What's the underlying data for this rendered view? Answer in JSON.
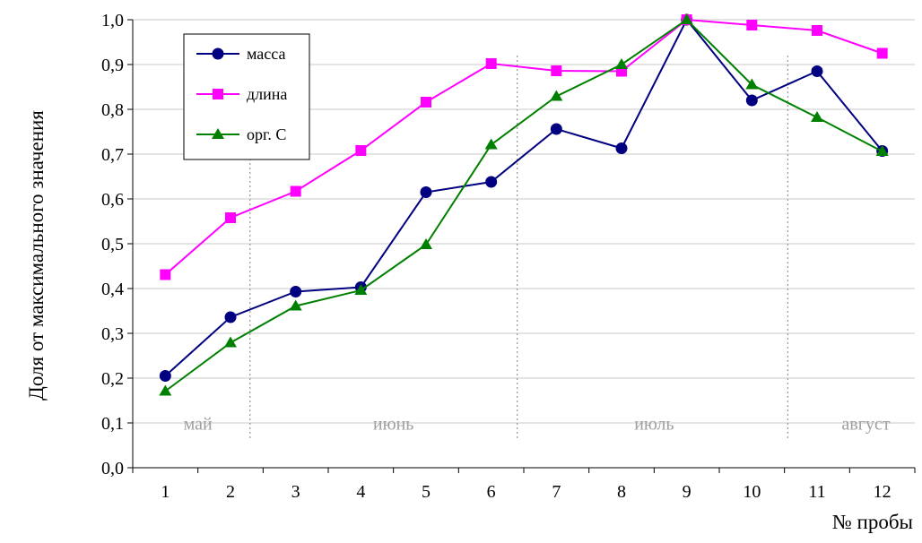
{
  "chart_data": {
    "type": "line",
    "title": "",
    "xlabel": "№ пробы",
    "ylabel": "Доля от максимального значения",
    "x": [
      1,
      2,
      3,
      4,
      5,
      6,
      7,
      8,
      9,
      10,
      11,
      12
    ],
    "x_tick_labels": [
      "1",
      "2",
      "3",
      "4",
      "5",
      "6",
      "7",
      "8",
      "9",
      "10",
      "11",
      "12"
    ],
    "ylim": [
      0,
      1
    ],
    "y_tick_labels": [
      "0,0",
      "0,1",
      "0,2",
      "0,3",
      "0,4",
      "0,5",
      "0,6",
      "0,7",
      "0,8",
      "0,9",
      "1,0"
    ],
    "grid": true,
    "legend_position": "top-left",
    "series": [
      {
        "name": "масса",
        "color": "#000080",
        "marker": "circle",
        "values": [
          0.205,
          0.336,
          0.393,
          0.403,
          0.615,
          0.638,
          0.756,
          0.713,
          1.0,
          0.82,
          0.885,
          0.707
        ]
      },
      {
        "name": "длина",
        "color": "#ff00ff",
        "marker": "square",
        "values": [
          0.431,
          0.558,
          0.617,
          0.708,
          0.816,
          0.902,
          0.886,
          0.885,
          1.0,
          0.988,
          0.976,
          0.925
        ]
      },
      {
        "name": "орг. С",
        "color": "#008000",
        "marker": "triangle",
        "values": [
          0.171,
          0.279,
          0.361,
          0.396,
          0.498,
          0.721,
          0.829,
          0.9,
          1.0,
          0.855,
          0.782,
          0.706
        ]
      }
    ],
    "months": [
      {
        "label": "май",
        "x_center": 1.5
      },
      {
        "label": "июнь",
        "x_center": 4.5
      },
      {
        "label": "июль",
        "x_center": 8.5
      },
      {
        "label": "август",
        "x_center": 11.75
      }
    ],
    "month_separators": [
      2.3,
      6.4,
      10.55
    ]
  }
}
